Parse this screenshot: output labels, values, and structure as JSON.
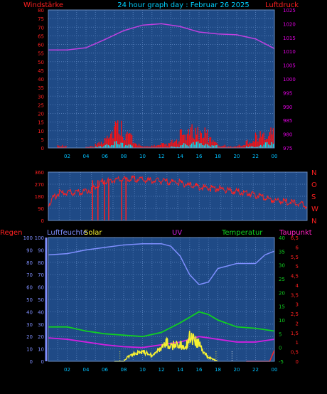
{
  "header": {
    "left_label": "Windstärke",
    "title": "24 hour graph day : Februar 26 2025",
    "right_label": "Luftdruck"
  },
  "labels": {
    "regen": "Regen",
    "luftfeuchte": "Luftfeuchte",
    "solar": "Solar",
    "uv": "UV",
    "temperatur": "Temperatur",
    "taupunkt": "Taupunkt"
  },
  "colors": {
    "background": "#000000",
    "plot_bg": "#1f4a86",
    "grid": "#4f78b4",
    "wind": "#ff1010",
    "gust": "#00e0f0",
    "pressure": "#c040e0",
    "direction": "#ff2020",
    "humidity": "#7f8fff",
    "solar": "#f5f032",
    "temperature": "#10d020",
    "dewpoint": "#d020e0",
    "rain": "#ff2020",
    "uv_axis": "#00a0ff",
    "axis_text_left": "#ff2020",
    "axis_text_right_top": "#e000e0",
    "title_text": "#00d0ff"
  },
  "chart_data": [
    {
      "type": "bar",
      "name": "wind",
      "x_ticks": [
        "02",
        "04",
        "06",
        "08",
        "10",
        "12",
        "14",
        "16",
        "18",
        "20",
        "22",
        "00"
      ],
      "y_left_ticks": [
        0,
        5,
        10,
        15,
        20,
        25,
        30,
        35,
        40,
        45,
        50,
        55,
        60,
        65,
        70,
        75,
        80
      ],
      "y_right_ticks": [
        975,
        980,
        985,
        990,
        995,
        1000,
        1005,
        1010,
        1015,
        1020,
        1025
      ],
      "ylim_left": [
        0,
        80
      ],
      "ylim_right": [
        975,
        1025
      ],
      "wind_hourly_max": [
        0,
        2,
        0,
        0,
        1,
        4,
        13,
        18,
        11,
        3,
        1,
        2,
        3,
        5,
        11,
        14,
        12,
        7,
        2,
        1,
        2,
        6,
        10,
        13
      ],
      "gust_hourly_max": [
        0,
        0,
        0,
        0,
        0,
        1,
        3,
        4,
        2,
        0,
        0,
        0,
        0,
        1,
        3,
        4,
        3,
        2,
        0,
        0,
        0,
        1,
        2,
        4
      ],
      "pressure": [
        [
          0,
          1010.5
        ],
        [
          2,
          1010.5
        ],
        [
          4,
          1011.3
        ],
        [
          6,
          1014.3
        ],
        [
          8,
          1017.5
        ],
        [
          10,
          1019.5
        ],
        [
          12,
          1020
        ],
        [
          14,
          1019
        ],
        [
          16,
          1017
        ],
        [
          18,
          1016.3
        ],
        [
          20,
          1016
        ],
        [
          22,
          1014.5
        ],
        [
          24,
          1011
        ]
      ]
    },
    {
      "type": "line",
      "name": "direction",
      "y_left_ticks": [
        0,
        90,
        180,
        270,
        360
      ],
      "y_right_labels": [
        "N",
        "W",
        "S",
        "O",
        "N"
      ],
      "ylim": [
        0,
        360
      ],
      "values": [
        [
          0,
          120
        ],
        [
          0.5,
          170
        ],
        [
          1,
          205
        ],
        [
          2,
          205
        ],
        [
          3,
          210
        ],
        [
          4,
          230
        ],
        [
          5,
          290
        ],
        [
          6,
          300
        ],
        [
          7,
          305
        ],
        [
          8,
          310
        ],
        [
          9,
          300
        ],
        [
          10,
          295
        ],
        [
          11,
          290
        ],
        [
          12,
          285
        ],
        [
          13,
          265
        ],
        [
          14,
          250
        ],
        [
          15,
          240
        ],
        [
          16,
          235
        ],
        [
          17,
          220
        ],
        [
          18,
          210
        ],
        [
          19,
          195
        ],
        [
          20,
          170
        ],
        [
          21,
          150
        ],
        [
          22,
          140
        ],
        [
          23,
          130
        ],
        [
          24,
          110
        ]
      ]
    },
    {
      "type": "line",
      "name": "combined",
      "y_left_ticks": [
        0,
        10,
        20,
        30,
        40,
        50,
        60,
        70,
        80,
        90,
        100
      ],
      "y_right_outer_ticks": [
        -5,
        0,
        5,
        10,
        15,
        20,
        25,
        30,
        35,
        40
      ],
      "y_right_inner_ticks": [
        0,
        0.5,
        1,
        1.5,
        2,
        2.5,
        3,
        3.5,
        4,
        4.5,
        5,
        5.5,
        6,
        6.5
      ],
      "humidity": [
        [
          0,
          86
        ],
        [
          2,
          87
        ],
        [
          4,
          90
        ],
        [
          6,
          92
        ],
        [
          8,
          94
        ],
        [
          10,
          95
        ],
        [
          12,
          95
        ],
        [
          13,
          93
        ],
        [
          14,
          85
        ],
        [
          15,
          70
        ],
        [
          16,
          62
        ],
        [
          17,
          64
        ],
        [
          18,
          75
        ],
        [
          20,
          79
        ],
        [
          22,
          79
        ],
        [
          23,
          86
        ],
        [
          24,
          89
        ]
      ],
      "temperature": [
        [
          0,
          7.5
        ],
        [
          2,
          7.5
        ],
        [
          4,
          6
        ],
        [
          6,
          5
        ],
        [
          8,
          4.5
        ],
        [
          10,
          4
        ],
        [
          12,
          5.5
        ],
        [
          14,
          9
        ],
        [
          16,
          13
        ],
        [
          17,
          12
        ],
        [
          18,
          10
        ],
        [
          20,
          7.5
        ],
        [
          22,
          7
        ],
        [
          24,
          6
        ]
      ],
      "dewpoint": [
        [
          0,
          3.5
        ],
        [
          2,
          3
        ],
        [
          4,
          2
        ],
        [
          6,
          1
        ],
        [
          8,
          0.3
        ],
        [
          10,
          0
        ],
        [
          12,
          1
        ],
        [
          14,
          2
        ],
        [
          16,
          4
        ],
        [
          18,
          3
        ],
        [
          20,
          2
        ],
        [
          22,
          2
        ],
        [
          24,
          3
        ]
      ],
      "solar": [
        [
          7,
          0
        ],
        [
          8,
          0
        ],
        [
          8.5,
          5
        ],
        [
          9,
          8
        ],
        [
          10,
          10
        ],
        [
          11,
          6
        ],
        [
          12,
          14
        ],
        [
          12.5,
          20
        ],
        [
          13,
          16
        ],
        [
          14,
          18
        ],
        [
          14.5,
          12
        ],
        [
          15,
          26
        ],
        [
          15.5,
          22
        ],
        [
          16,
          18
        ],
        [
          16.5,
          10
        ],
        [
          17,
          4
        ],
        [
          18,
          0
        ]
      ],
      "rain": [
        [
          21,
          0
        ],
        [
          23.5,
          0
        ],
        [
          24,
          9
        ]
      ]
    }
  ]
}
